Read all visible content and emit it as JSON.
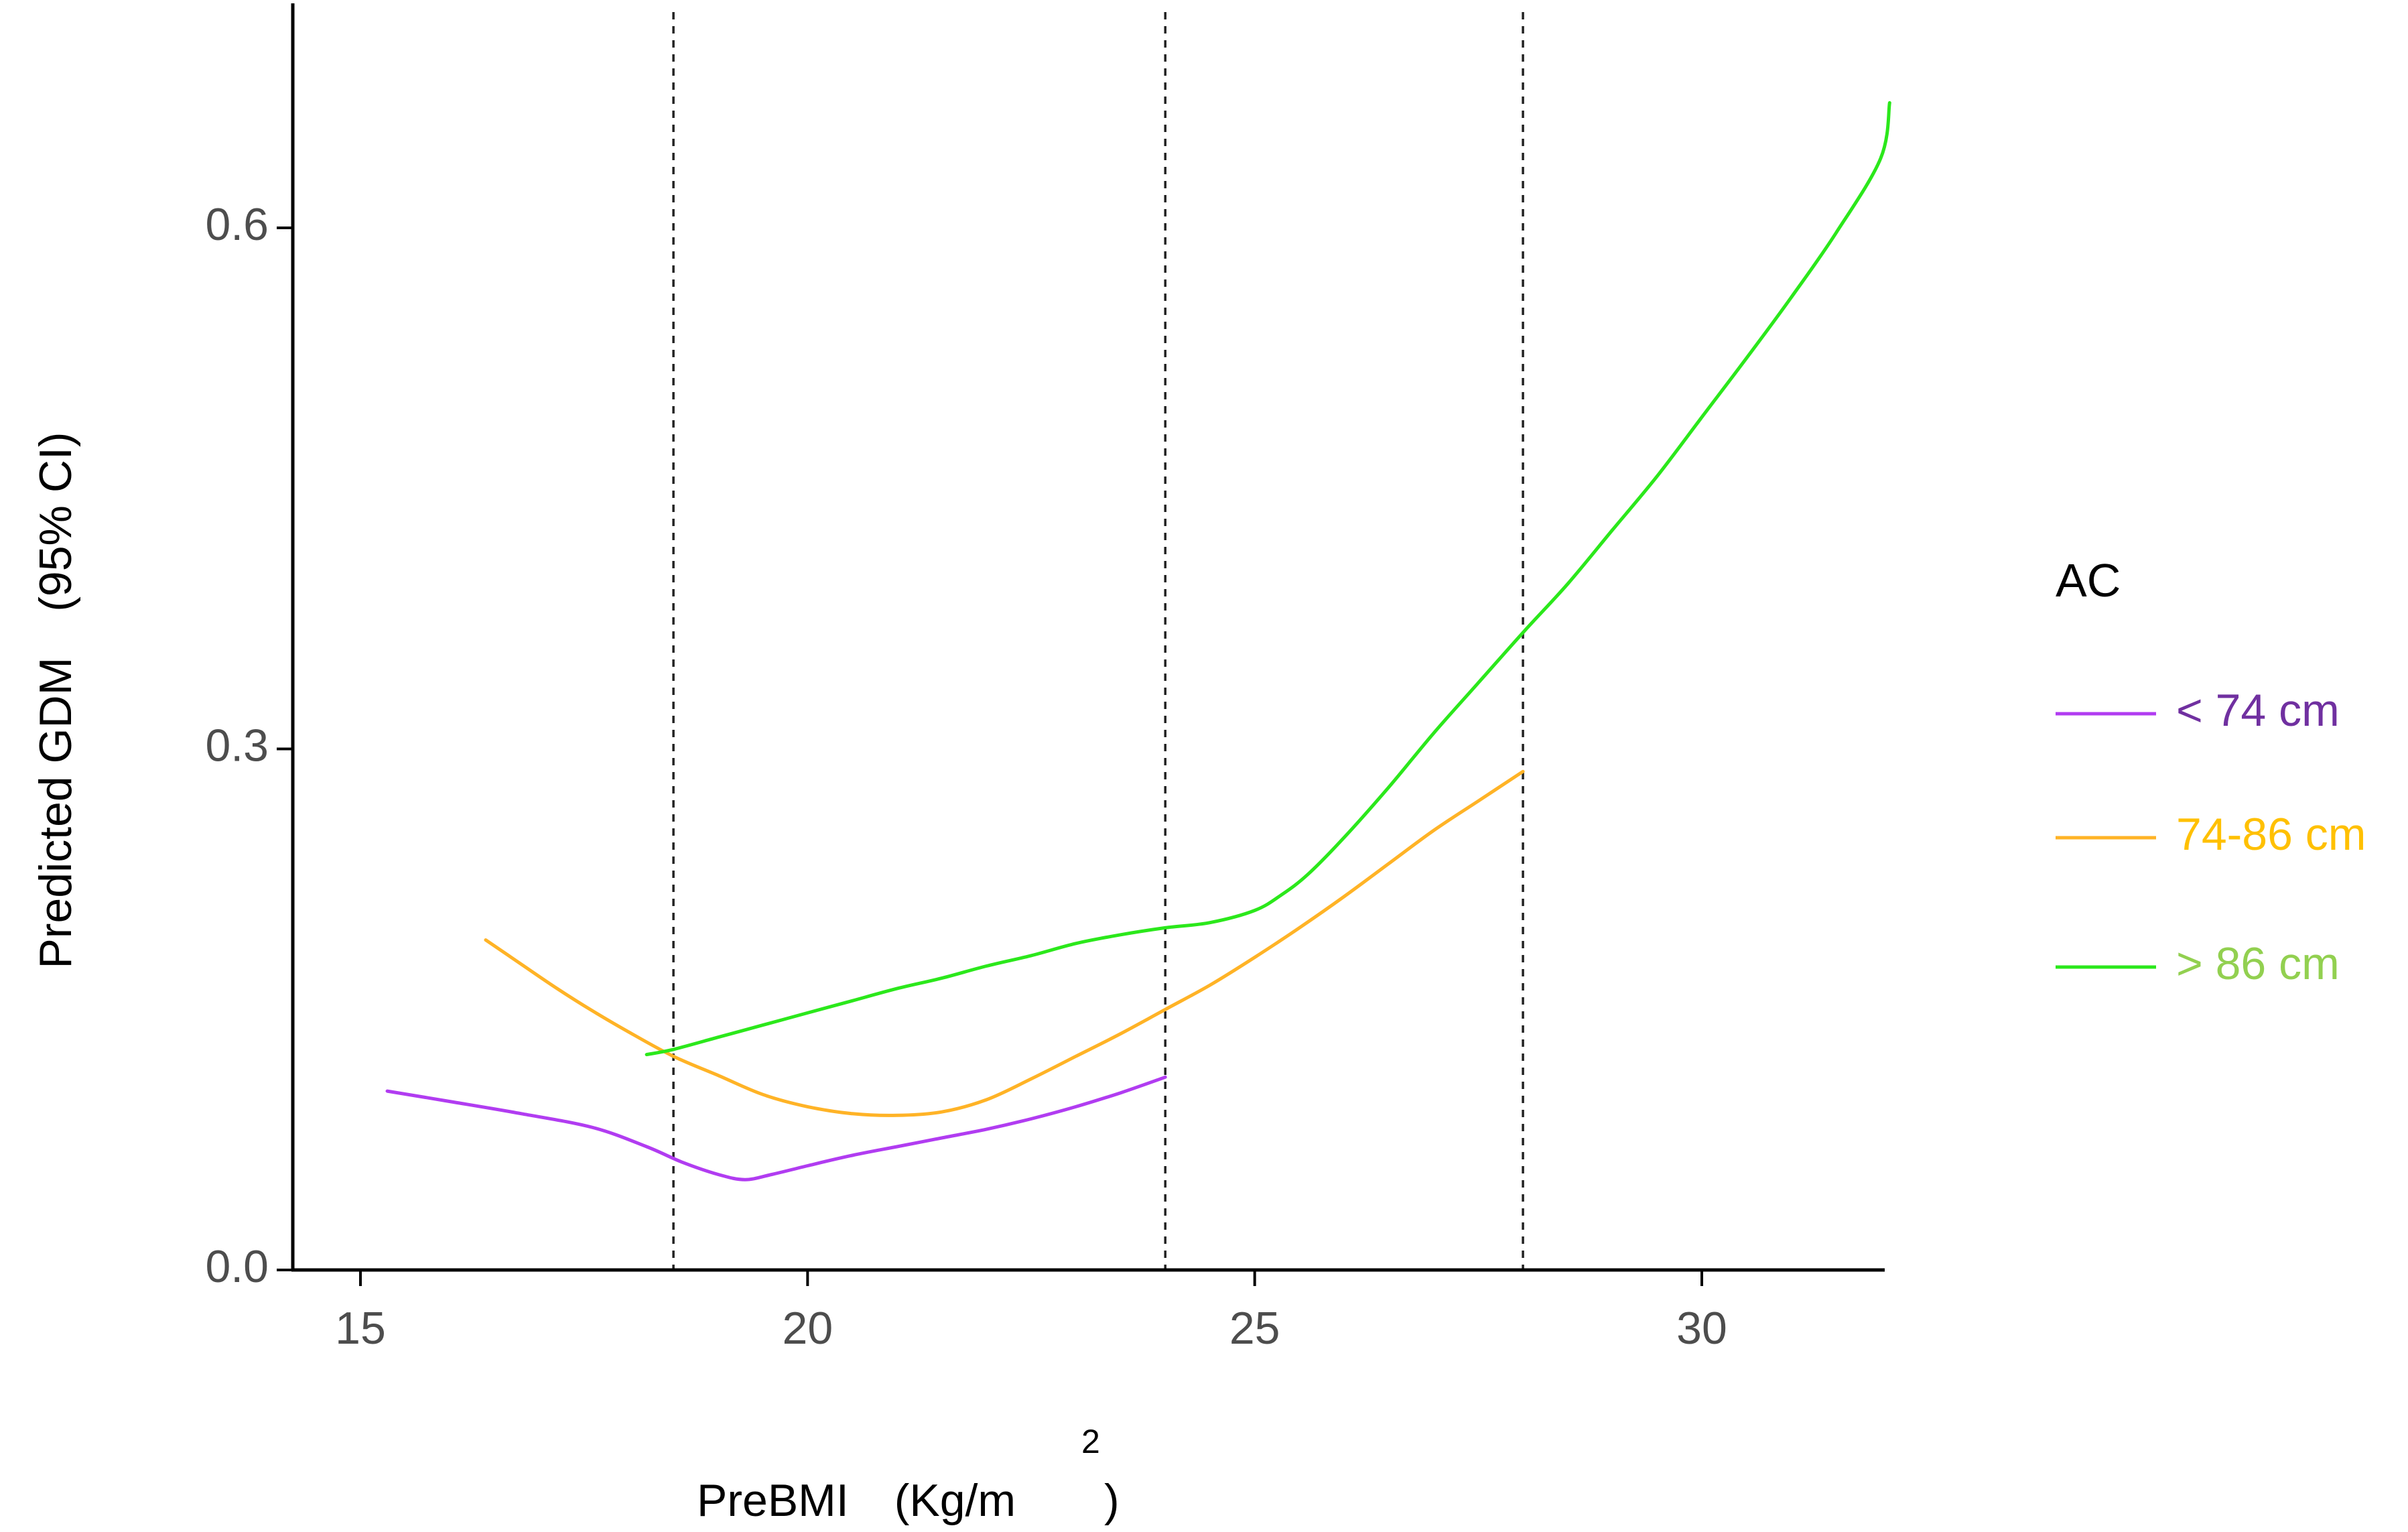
{
  "chart_data": {
    "type": "line",
    "xlabel": "PreBMI　(Kg/m",
    "xlabel_superscript": "2",
    "xlabel_close": ")",
    "ylabel": "Predicted GDM　(95% CI)",
    "xlim": [
      14.2,
      32.0
    ],
    "ylim": [
      0.0,
      0.72
    ],
    "x_ticks": [
      15,
      20,
      25,
      30
    ],
    "x_tick_labels": [
      "15",
      "20",
      "25",
      "30"
    ],
    "y_ticks": [
      0.0,
      0.3,
      0.6
    ],
    "y_tick_labels": [
      "0.0",
      "0.3",
      "0.6"
    ],
    "reference_lines_x": [
      18.5,
      24,
      28
    ],
    "grid": false,
    "legend": {
      "title": "AC",
      "placement": "right"
    },
    "series": [
      {
        "name": "< 74 cm",
        "line_color": "#B13CF1",
        "label_color": "#7030A0",
        "points": [
          [
            15.3,
            0.103
          ],
          [
            16.0,
            0.097
          ],
          [
            16.8,
            0.09
          ],
          [
            17.6,
            0.082
          ],
          [
            18.2,
            0.071
          ],
          [
            18.6,
            0.062
          ],
          [
            19.0,
            0.055
          ],
          [
            19.3,
            0.052
          ],
          [
            19.6,
            0.055
          ],
          [
            20.0,
            0.06
          ],
          [
            20.5,
            0.066
          ],
          [
            21.0,
            0.071
          ],
          [
            21.5,
            0.076
          ],
          [
            22.0,
            0.081
          ],
          [
            22.5,
            0.087
          ],
          [
            23.0,
            0.094
          ],
          [
            23.5,
            0.102
          ],
          [
            24.0,
            0.111
          ]
        ]
      },
      {
        "name": "74-86 cm",
        "line_color": "#FFB326",
        "label_color": "#FFC000",
        "points": [
          [
            16.4,
            0.19
          ],
          [
            16.8,
            0.176
          ],
          [
            17.2,
            0.162
          ],
          [
            17.6,
            0.149
          ],
          [
            18.0,
            0.137
          ],
          [
            18.5,
            0.123
          ],
          [
            19.0,
            0.112
          ],
          [
            19.5,
            0.101
          ],
          [
            20.0,
            0.094
          ],
          [
            20.5,
            0.09
          ],
          [
            21.0,
            0.089
          ],
          [
            21.5,
            0.091
          ],
          [
            22.0,
            0.098
          ],
          [
            22.5,
            0.11
          ],
          [
            23.0,
            0.123
          ],
          [
            23.5,
            0.136
          ],
          [
            24.0,
            0.15
          ],
          [
            24.5,
            0.164
          ],
          [
            25.0,
            0.18
          ],
          [
            25.5,
            0.197
          ],
          [
            26.0,
            0.215
          ],
          [
            26.5,
            0.234
          ],
          [
            27.0,
            0.253
          ],
          [
            27.5,
            0.27
          ],
          [
            28.0,
            0.287
          ]
        ]
      },
      {
        "name": "> 86 cm",
        "line_color": "#2BE81B",
        "label_color": "#92D050",
        "points": [
          [
            18.2,
            0.124
          ],
          [
            18.5,
            0.127
          ],
          [
            19.0,
            0.134
          ],
          [
            19.5,
            0.141
          ],
          [
            20.0,
            0.148
          ],
          [
            20.5,
            0.155
          ],
          [
            21.0,
            0.162
          ],
          [
            21.5,
            0.168
          ],
          [
            22.0,
            0.175
          ],
          [
            22.5,
            0.181
          ],
          [
            23.0,
            0.188
          ],
          [
            23.5,
            0.193
          ],
          [
            24.0,
            0.197
          ],
          [
            24.5,
            0.2
          ],
          [
            25.0,
            0.207
          ],
          [
            25.3,
            0.216
          ],
          [
            25.6,
            0.228
          ],
          [
            26.0,
            0.249
          ],
          [
            26.5,
            0.278
          ],
          [
            27.0,
            0.309
          ],
          [
            27.5,
            0.338
          ],
          [
            28.0,
            0.367
          ],
          [
            28.5,
            0.395
          ],
          [
            29.0,
            0.426
          ],
          [
            29.5,
            0.457
          ],
          [
            30.0,
            0.491
          ],
          [
            30.5,
            0.525
          ],
          [
            31.0,
            0.56
          ],
          [
            31.5,
            0.597
          ],
          [
            32.0,
            0.64
          ],
          [
            32.1,
            0.672
          ]
        ]
      }
    ]
  }
}
